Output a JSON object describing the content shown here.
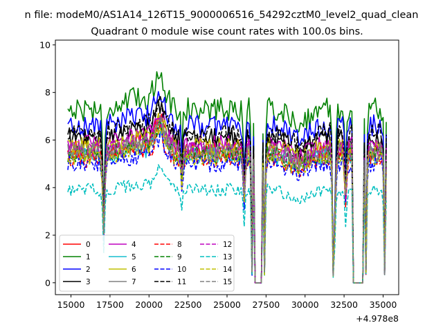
{
  "chart_data": {
    "type": "line",
    "suptitle": "n file: modeM0/AS1A14_126T15_9000006516_54292cztM0_level2_quad_clean",
    "title": "Quadrant 0 module wise count rates with 100.0s bins.",
    "xlabel": "",
    "ylabel": "",
    "x_offset_label": "+4.978e8",
    "xlim": [
      14000,
      36000
    ],
    "ylim": [
      -0.5,
      10.2
    ],
    "xticks": [
      15000,
      17500,
      20000,
      22500,
      25000,
      27500,
      30000,
      32500,
      35000
    ],
    "xtick_labels": [
      "15000",
      "17500",
      "20000",
      "22500",
      "25000",
      "27500",
      "30000",
      "32500",
      "35000"
    ],
    "yticks": [
      0,
      2,
      4,
      6,
      8,
      10
    ],
    "ytick_labels": [
      "0",
      "2",
      "4",
      "6",
      "8",
      "10"
    ],
    "grid": false,
    "legend_position": "lower-left",
    "legend_columns": 4,
    "x_range": [
      14800,
      35200
    ],
    "bin_seconds": 100,
    "features": {
      "peak_x": 20700,
      "dips": [
        {
          "x": 17100,
          "depth": 0.65
        },
        {
          "x": 22100,
          "depth": 0.22
        },
        {
          "x": 26100,
          "depth": 0.35
        },
        {
          "x": 31900,
          "depth": 0.55
        },
        {
          "x": 32600,
          "depth": 0.35
        }
      ],
      "gaps_to_zero": [
        [
          26750,
          27250
        ],
        [
          33100,
          33750
        ]
      ],
      "gap_edges_low": [
        26600,
        27400,
        31800,
        33900,
        35100
      ]
    },
    "series": [
      {
        "name": "0",
        "color": "#ff0000",
        "dash": "solid",
        "base": 5.6
      },
      {
        "name": "1",
        "color": "#008000",
        "dash": "solid",
        "base": 7.3
      },
      {
        "name": "2",
        "color": "#0000ff",
        "dash": "solid",
        "base": 6.6
      },
      {
        "name": "3",
        "color": "#000000",
        "dash": "solid",
        "base": 6.1
      },
      {
        "name": "4",
        "color": "#bf00bf",
        "dash": "solid",
        "base": 5.8
      },
      {
        "name": "5",
        "color": "#17becf",
        "dash": "solid",
        "base": 5.3
      },
      {
        "name": "6",
        "color": "#bfbf00",
        "dash": "solid",
        "base": 5.7
      },
      {
        "name": "7",
        "color": "#808080",
        "dash": "solid",
        "base": 5.5
      },
      {
        "name": "8",
        "color": "#ff0000",
        "dash": "dashed",
        "base": 5.2
      },
      {
        "name": "9",
        "color": "#008000",
        "dash": "dashed",
        "base": 5.4
      },
      {
        "name": "10",
        "color": "#0000ff",
        "dash": "dashed",
        "base": 5.0
      },
      {
        "name": "11",
        "color": "#000000",
        "dash": "dashed",
        "base": 6.3
      },
      {
        "name": "12",
        "color": "#bf00bf",
        "dash": "dashed",
        "base": 5.6
      },
      {
        "name": "13",
        "color": "#00bfbf",
        "dash": "dashed",
        "base": 3.9
      },
      {
        "name": "14",
        "color": "#bfbf00",
        "dash": "dashed",
        "base": 5.3
      },
      {
        "name": "15",
        "color": "#808080",
        "dash": "dashed",
        "base": 5.5
      }
    ]
  }
}
